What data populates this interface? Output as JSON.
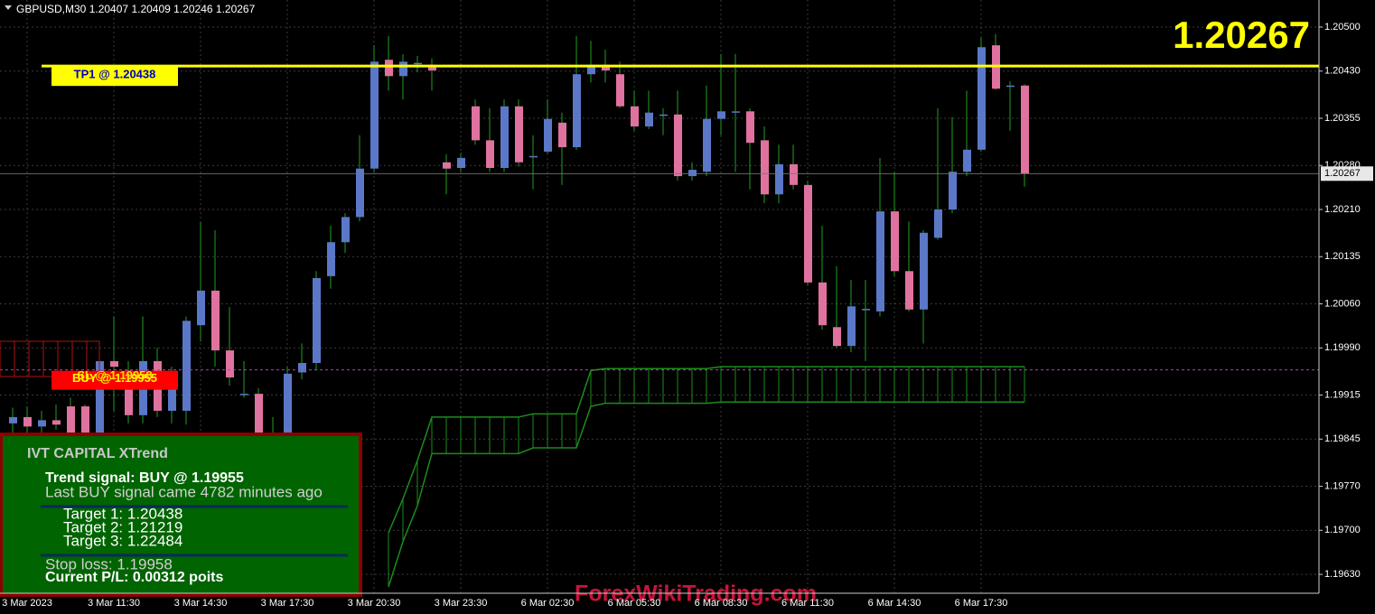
{
  "chart_data": {
    "type": "candlestick",
    "title": "GBPUSD,M30",
    "categories": [
      null,
      "3 Mar 2023",
      null,
      null,
      null,
      null,
      null,
      "3 Mar 11:30",
      null,
      null,
      null,
      null,
      null,
      "3 Mar 14:30",
      null,
      null,
      null,
      null,
      null,
      "3 Mar 17:30",
      null,
      null,
      null,
      null,
      null,
      "3 Mar 20:30",
      null,
      null,
      null,
      null,
      null,
      "3 Mar 23:30",
      null,
      null,
      null,
      null,
      null,
      "6 Mar 02:30",
      null,
      null,
      null,
      null,
      null,
      "6 Mar 05:30",
      null,
      null,
      null,
      null,
      null,
      "6 Mar 08:30",
      null,
      null,
      null,
      null,
      null,
      "6 Mar 11:30",
      null,
      null,
      null,
      null,
      null,
      "6 Mar 14:30",
      null,
      null,
      null,
      null,
      null,
      "6 Mar 17:30",
      null,
      null,
      null
    ],
    "open": [
      1.1987,
      1.1988,
      1.19865,
      1.19875,
      1.19897,
      1.19897,
      1.19854,
      1.19969,
      1.19954,
      1.19883,
      1.19969,
      1.1989,
      1.1989,
      1.20026,
      1.20081,
      1.19986,
      1.19917,
      1.19917,
      1.19854,
      1.19854,
      1.19951,
      1.19966,
      1.20104,
      1.20158,
      1.20198,
      1.20275,
      1.20448,
      1.20422,
      1.20443,
      1.2044,
      1.20285,
      1.20276,
      1.20374,
      1.2032,
      1.20276,
      1.20374,
      1.20295,
      1.20302,
      1.20348,
      1.20309,
      1.20425,
      1.2044,
      1.20425,
      1.20374,
      1.20342,
      1.20361,
      1.20361,
      1.20263,
      1.2027,
      1.20354,
      1.20366,
      1.20366,
      1.2032,
      1.20234,
      1.20282,
      1.20249,
      1.20094,
      1.20023,
      1.19993,
      1.20052,
      1.20048,
      1.20207,
      1.20112,
      1.20051,
      1.20165,
      1.2021,
      1.2027,
      1.20305,
      1.20471,
      1.20407,
      1.20407
    ],
    "high": [
      1.19895,
      1.19897,
      1.1989,
      1.199,
      1.19911,
      1.199,
      1.19983,
      1.2004,
      1.19969,
      1.2004,
      1.1999,
      1.1996,
      1.2004,
      1.2019,
      1.20177,
      1.20055,
      1.19969,
      1.19926,
      1.1988,
      1.1996,
      1.19997,
      1.20112,
      1.20184,
      1.20204,
      1.20328,
      1.20471,
      1.20486,
      1.20457,
      1.20454,
      1.2045,
      1.20298,
      1.203,
      1.20385,
      1.20371,
      1.20385,
      1.20385,
      1.20328,
      1.20385,
      1.20364,
      1.20486,
      1.20478,
      1.20464,
      1.20445,
      1.20399,
      1.20399,
      1.20371,
      1.20399,
      1.20285,
      1.20407,
      1.20457,
      1.20457,
      1.20371,
      1.20342,
      1.20313,
      1.20313,
      1.20256,
      1.20184,
      1.2012,
      1.20098,
      1.20098,
      1.20292,
      1.2027,
      1.20191,
      1.20177,
      1.20371,
      1.20357,
      1.20399,
      1.20483,
      1.20489,
      1.20414,
      1.20409
    ],
    "low": [
      1.1985,
      1.19855,
      1.1985,
      1.1986,
      1.1985,
      1.19845,
      1.1984,
      1.1989,
      1.1987,
      1.1987,
      1.1988,
      1.1987,
      1.19868,
      1.2,
      1.1996,
      1.1993,
      1.19911,
      1.19839,
      1.19825,
      1.19839,
      1.1994,
      1.19954,
      1.20084,
      1.20141,
      1.20191,
      1.2027,
      1.20399,
      1.20385,
      1.20428,
      1.20399,
      1.20234,
      1.2027,
      1.20313,
      1.2027,
      1.2027,
      1.20278,
      1.20242,
      1.20299,
      1.20249,
      1.20305,
      1.20412,
      1.20412,
      1.20371,
      1.20335,
      1.20338,
      1.20328,
      1.20256,
      1.20256,
      1.20263,
      1.20328,
      1.2027,
      1.20242,
      1.2022,
      1.2022,
      1.20242,
      1.2009,
      1.20019,
      1.1999,
      1.19983,
      1.19969,
      1.2004,
      1.20104,
      1.20048,
      1.19997,
      1.20162,
      1.20204,
      1.20263,
      1.20302,
      1.204,
      1.20335,
      1.20246
    ],
    "close": [
      1.1988,
      1.19865,
      1.19875,
      1.19868,
      1.19854,
      1.19854,
      1.19969,
      1.1996,
      1.19883,
      1.19969,
      1.1989,
      1.1994,
      1.20033,
      1.20081,
      1.19986,
      1.19943,
      1.19917,
      1.19854,
      1.1985,
      1.19949,
      1.19966,
      1.20101,
      1.20158,
      1.20198,
      1.20275,
      1.20445,
      1.20422,
      1.20445,
      1.20443,
      1.20431,
      1.20275,
      1.20292,
      1.2032,
      1.20276,
      1.20374,
      1.20285,
      1.20295,
      1.20354,
      1.20309,
      1.20425,
      1.2044,
      1.20431,
      1.20374,
      1.20342,
      1.20364,
      1.20361,
      1.20263,
      1.20273,
      1.20354,
      1.20366,
      1.20366,
      1.20316,
      1.20234,
      1.20282,
      1.20249,
      1.20094,
      1.20026,
      1.19993,
      1.20056,
      1.20052,
      1.20207,
      1.20112,
      1.20051,
      1.20173,
      1.2021,
      1.2027,
      1.20305,
      1.20468,
      1.20402,
      1.20407,
      1.20267
    ],
    "up_color": "#5b78c8",
    "down_color": "#e0729f",
    "wick_color": "#1fa01f",
    "channel": {
      "color": "#1c8c1c",
      "upper": [
        null,
        null,
        null,
        null,
        null,
        null,
        null,
        null,
        null,
        null,
        null,
        null,
        null,
        null,
        null,
        null,
        null,
        null,
        null,
        null,
        null,
        null,
        null,
        null,
        null,
        null,
        1.19696,
        1.1975,
        1.19811,
        1.1988,
        1.1988,
        1.1988,
        1.1988,
        1.1988,
        1.1988,
        1.1988,
        1.19885,
        1.19885,
        1.19885,
        1.19885,
        1.19954,
        1.19957,
        1.19957,
        1.19957,
        1.19957,
        1.19957,
        1.19957,
        1.19957,
        1.19957,
        1.1996,
        1.1996,
        1.1996,
        1.1996,
        1.1996,
        1.1996,
        1.1996,
        1.1996,
        1.1996,
        1.1996,
        1.1996,
        1.1996,
        1.1996,
        1.1996,
        1.1996,
        1.1996,
        1.1996,
        1.1996,
        1.1996,
        1.1996,
        1.1996,
        1.1996
      ],
      "lower": [
        null,
        null,
        null,
        null,
        null,
        null,
        null,
        null,
        null,
        null,
        null,
        null,
        null,
        null,
        null,
        null,
        null,
        null,
        null,
        null,
        null,
        null,
        null,
        null,
        null,
        null,
        1.1961,
        1.19682,
        1.19739,
        1.19822,
        1.19822,
        1.19822,
        1.19822,
        1.19822,
        1.19822,
        1.19822,
        1.19831,
        1.19831,
        1.19831,
        1.19831,
        1.19897,
        1.19902,
        1.19902,
        1.19902,
        1.19902,
        1.19902,
        1.19902,
        1.19902,
        1.19902,
        1.19904,
        1.19904,
        1.19904,
        1.19904,
        1.19904,
        1.19904,
        1.19904,
        1.19904,
        1.19904,
        1.19904,
        1.19904,
        1.19904,
        1.19904,
        1.19904,
        1.19904,
        1.19904,
        1.19904,
        1.19904,
        1.19904,
        1.19904,
        1.19904,
        1.19904
      ]
    },
    "levels": [
      {
        "label": "TP1 @ 1.20438",
        "value": 1.20438,
        "color": "#ffff00",
        "dashed": false,
        "label_bg": "#ffff00",
        "label_color": "#0000c0"
      },
      {
        "label": "BUY @ 1.19955",
        "value": 1.19955,
        "color": "#b040b0",
        "dashed": true,
        "label_bg": "#ff0000",
        "label_color": "#ffff00"
      }
    ],
    "sl_label": "SL @ 1.19958",
    "ylim": [
      1.196,
      1.20543
    ],
    "yticks": [
      {
        "value": 1.205,
        "label": "1.20500"
      },
      {
        "value": 1.2043,
        "label": "1.20430"
      },
      1.20355,
      {
        "value": 1.2028,
        "label": "1.20280"
      },
      {
        "value": 1.2021,
        "label": "1.20210"
      },
      1.20135,
      {
        "value": 1.2006,
        "label": "1.20060"
      },
      {
        "value": 1.1999,
        "label": "1.19990"
      },
      1.19915,
      1.19845,
      {
        "value": 1.1977,
        "label": "1.19770"
      },
      {
        "value": 1.197,
        "label": "1.19700"
      },
      {
        "value": 1.1963,
        "label": "1.19630"
      }
    ],
    "grid": true
  },
  "panel": {
    "title": "IVT CAPITAL XTrend",
    "signal": "Trend signal: BUY @ 1.19955",
    "last_signal": "Last BUY signal came 4782 minutes ago",
    "targets": [
      "Target 1: 1.20438",
      "Target 2: 1.21219",
      "Target 3: 1.22484"
    ],
    "stop_loss": "Stop loss: 1.19958",
    "pl": "Current P/L: 0.00312 poits"
  },
  "watermark": "ForexWikiTrading.com"
}
